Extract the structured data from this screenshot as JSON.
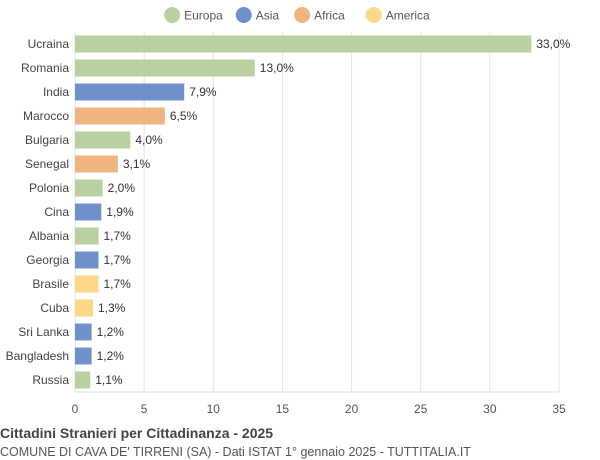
{
  "chart_data": {
    "type": "bar",
    "orientation": "horizontal",
    "title": "Cittadini Stranieri per Cittadinanza - 2025",
    "subtitle": "COMUNE DI CAVA DE' TIRRENI (SA) - Dati ISTAT 1° gennaio 2025 - TUTTITALIA.IT",
    "legend": {
      "placement": "top-center",
      "entries": [
        {
          "name": "Europa",
          "color": "#b9d1a1"
        },
        {
          "name": "Asia",
          "color": "#7090cc"
        },
        {
          "name": "Africa",
          "color": "#efb57f"
        },
        {
          "name": "America",
          "color": "#fdd888"
        }
      ]
    },
    "categories": [
      "Ucraina",
      "Romania",
      "India",
      "Marocco",
      "Bulgaria",
      "Senegal",
      "Polonia",
      "Cina",
      "Albania",
      "Georgia",
      "Brasile",
      "Cuba",
      "Sri Lanka",
      "Bangladesh",
      "Russia"
    ],
    "values": [
      33.0,
      13.0,
      7.9,
      6.5,
      4.0,
      3.1,
      2.0,
      1.9,
      1.7,
      1.7,
      1.7,
      1.3,
      1.2,
      1.2,
      1.1
    ],
    "value_labels": [
      "33,0%",
      "13,0%",
      "7,9%",
      "6,5%",
      "4,0%",
      "3,1%",
      "2,0%",
      "1,9%",
      "1,7%",
      "1,7%",
      "1,7%",
      "1,3%",
      "1,2%",
      "1,2%",
      "1,1%"
    ],
    "continents": [
      "Europa",
      "Europa",
      "Asia",
      "Africa",
      "Europa",
      "Africa",
      "Europa",
      "Asia",
      "Europa",
      "Asia",
      "America",
      "America",
      "Asia",
      "Asia",
      "Europa"
    ],
    "xlim": [
      0,
      35
    ],
    "xticks": [
      0,
      5,
      10,
      15,
      20,
      25,
      30,
      35
    ],
    "grid": true
  }
}
